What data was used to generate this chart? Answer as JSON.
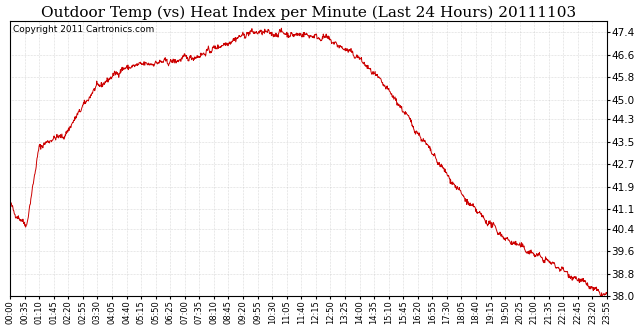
{
  "title": "Outdoor Temp (vs) Heat Index per Minute (Last 24 Hours) 20111103",
  "copyright_text": "Copyright 2011 Cartronics.com",
  "line_color": "#cc0000",
  "background_color": "#ffffff",
  "grid_color": "#aaaaaa",
  "ylim": [
    38.0,
    47.8
  ],
  "yticks": [
    38.0,
    38.8,
    39.6,
    40.4,
    41.1,
    41.9,
    42.7,
    43.5,
    44.3,
    45.0,
    45.8,
    46.6,
    47.4
  ],
  "xtick_labels": [
    "00:00",
    "00:35",
    "01:10",
    "01:45",
    "02:20",
    "02:55",
    "03:30",
    "04:05",
    "04:40",
    "05:15",
    "05:50",
    "06:25",
    "07:00",
    "07:35",
    "08:10",
    "08:45",
    "09:20",
    "09:55",
    "10:30",
    "11:05",
    "11:40",
    "12:15",
    "12:50",
    "13:25",
    "14:00",
    "14:35",
    "15:10",
    "15:45",
    "16:20",
    "16:55",
    "17:30",
    "18:05",
    "18:40",
    "19:15",
    "19:50",
    "20:25",
    "21:00",
    "21:35",
    "22:10",
    "22:45",
    "23:20",
    "23:55"
  ],
  "title_fontsize": 11,
  "copyright_fontsize": 6.5,
  "n_points": 1440
}
